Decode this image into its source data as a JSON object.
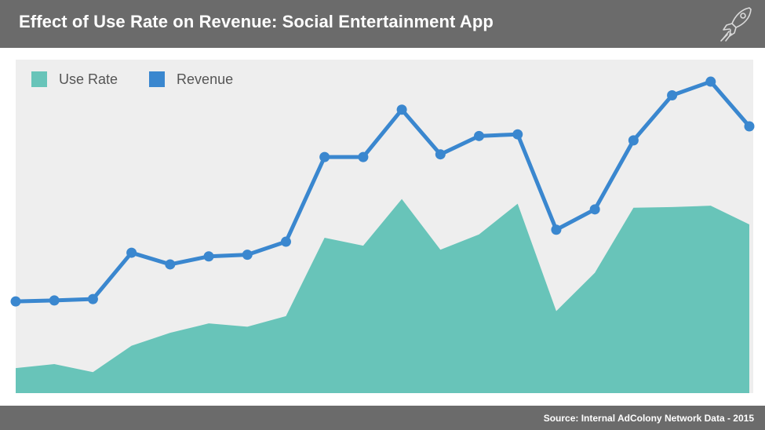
{
  "header": {
    "title": "Effect of Use Rate on Revenue:  Social Entertainment App",
    "logo_icon": "rocket-icon"
  },
  "footer": {
    "source": "Source:  Internal AdColony Network Data - 2015"
  },
  "colors": {
    "header_bg": "#6b6b6b",
    "plot_bg": "#eeeeee",
    "use_rate": "#68c4b9",
    "revenue": "#3a87cf"
  },
  "chart_data": {
    "type": "line",
    "title": "Effect of Use Rate on Revenue:  Social Entertainment App",
    "xlabel": "",
    "ylabel": "",
    "grid": false,
    "legend_position": "top-left",
    "x": [
      1,
      2,
      3,
      4,
      5,
      6,
      7,
      8,
      9,
      10,
      11,
      12,
      13,
      14,
      15,
      16,
      17,
      18,
      19,
      20
    ],
    "ylim": [
      0,
      100
    ],
    "series": [
      {
        "name": "Use Rate",
        "kind": "area",
        "color": "#68c4b9",
        "values": [
          7.5,
          8.7,
          6.3,
          14.2,
          18.1,
          20.9,
          19.9,
          23.1,
          46.6,
          44.2,
          58.2,
          43.0,
          47.6,
          56.8,
          24.6,
          36.1,
          55.6,
          55.8,
          56.2,
          50.6
        ]
      },
      {
        "name": "Revenue",
        "kind": "line",
        "color": "#3a87cf",
        "values": [
          27.5,
          27.8,
          28.2,
          42.1,
          38.6,
          41.0,
          41.5,
          45.4,
          70.8,
          70.8,
          85.0,
          71.6,
          77.1,
          77.6,
          49.0,
          55.1,
          75.8,
          89.3,
          93.4,
          80.0
        ]
      }
    ]
  }
}
